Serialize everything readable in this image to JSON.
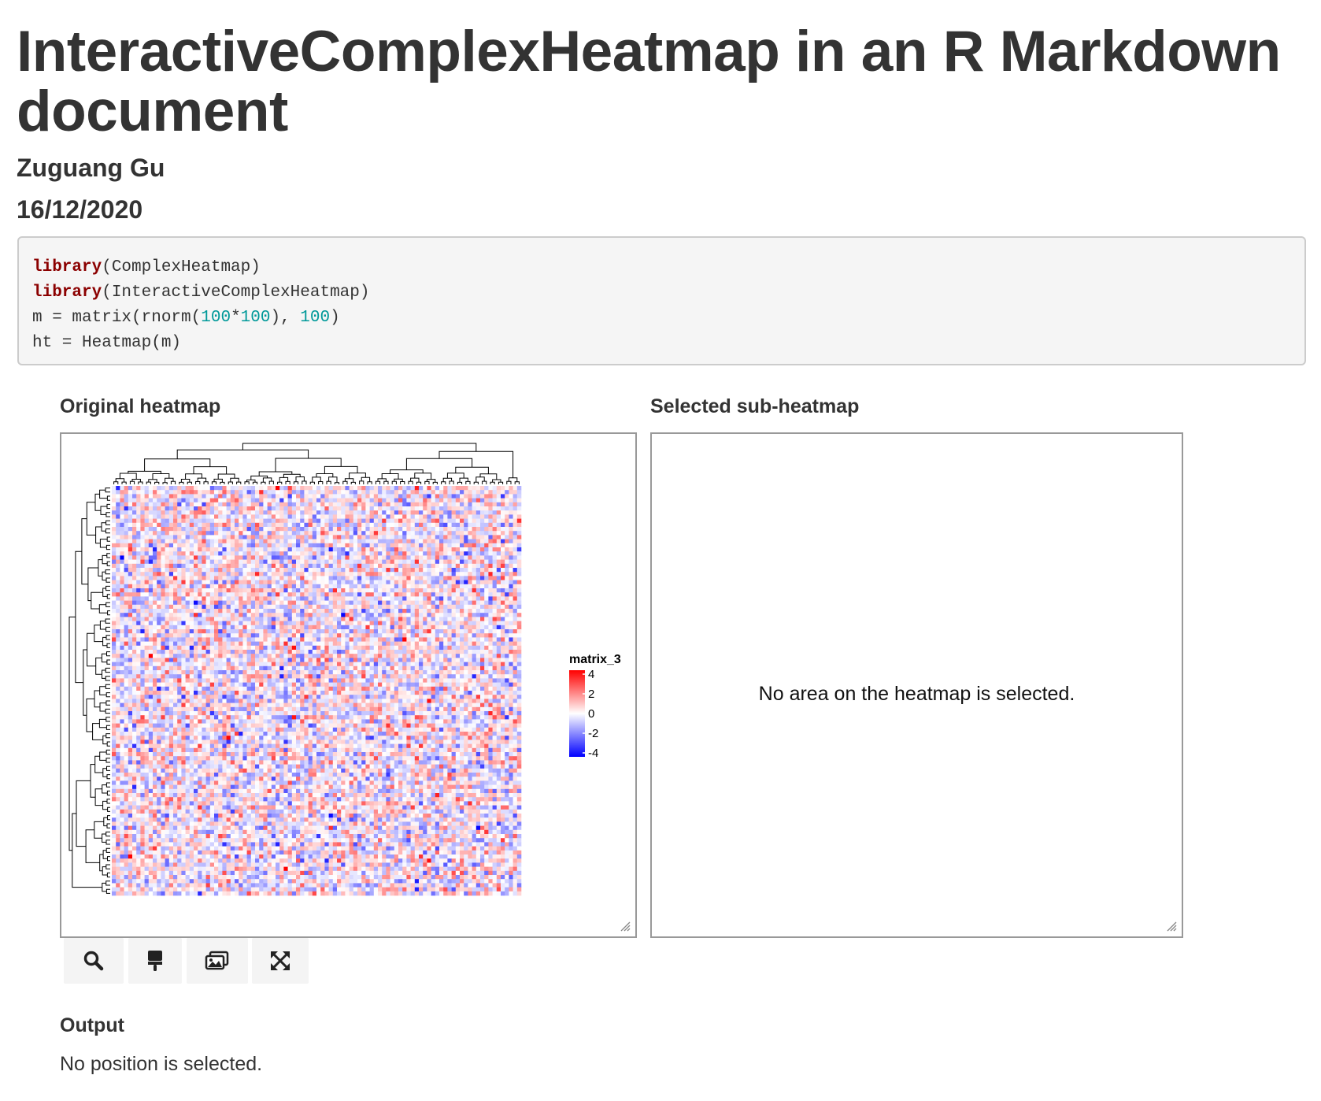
{
  "document": {
    "title": "InteractiveComplexHeatmap in an R Markdown document",
    "author": "Zuguang Gu",
    "date": "16/12/2020"
  },
  "code": {
    "lines": [
      [
        {
          "t": "library",
          "c": "kw"
        },
        {
          "t": "(ComplexHeatmap)",
          "c": ""
        }
      ],
      [
        {
          "t": "library",
          "c": "kw"
        },
        {
          "t": "(InteractiveComplexHeatmap)",
          "c": ""
        }
      ],
      [
        {
          "t": "m = matrix(rnorm(",
          "c": ""
        },
        {
          "t": "100",
          "c": "num"
        },
        {
          "t": "*",
          "c": ""
        },
        {
          "t": "100",
          "c": "num"
        },
        {
          "t": "), ",
          "c": ""
        },
        {
          "t": "100",
          "c": "num"
        },
        {
          "t": ")",
          "c": ""
        }
      ],
      [
        {
          "t": "ht = Heatmap(m)",
          "c": ""
        }
      ]
    ]
  },
  "original_panel": {
    "label": "Original heatmap",
    "legend": {
      "title": "matrix_3",
      "ticks": [
        "4",
        "2",
        "0",
        "-2",
        "-4"
      ],
      "colors": {
        "high": "#ff0000",
        "mid": "#ffffff",
        "low": "#0000ff"
      }
    }
  },
  "sub_panel": {
    "label": "Selected sub-heatmap",
    "empty_message": "No area on the heatmap is selected."
  },
  "toolbar": {
    "buttons": [
      {
        "name": "search-button",
        "icon": "search-icon"
      },
      {
        "name": "brush-button",
        "icon": "brush-icon"
      },
      {
        "name": "image-button",
        "icon": "images-icon"
      },
      {
        "name": "expand-button",
        "icon": "expand-icon"
      }
    ]
  },
  "output": {
    "label": "Output",
    "text": "No position is selected."
  }
}
